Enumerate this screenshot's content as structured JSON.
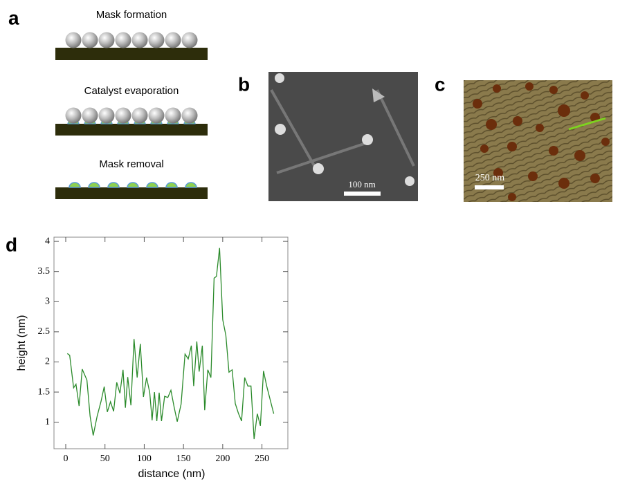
{
  "figure": {
    "panels": {
      "a": {
        "label": "a",
        "steps": [
          "Mask formation",
          "Catalyst evaporation",
          "Mask removal"
        ]
      },
      "b": {
        "label": "b",
        "scale_bar": "100 nm"
      },
      "c": {
        "label": "c",
        "scale_bar": "250 nm"
      },
      "d": {
        "label": "d"
      }
    }
  },
  "chart_data": {
    "type": "line",
    "x_label": "distance (nm)",
    "y_label": "height (nm)",
    "x": [
      2,
      5,
      10,
      13,
      17,
      21,
      27,
      31,
      35,
      40,
      45,
      49,
      53,
      57,
      61,
      65,
      69,
      73,
      76,
      79,
      83,
      87,
      91,
      95,
      99,
      103,
      107,
      110,
      113,
      116,
      119,
      122,
      126,
      130,
      134,
      138,
      142,
      147,
      152,
      156,
      160,
      163,
      167,
      170,
      174,
      177,
      181,
      185,
      189,
      192,
      196,
      200,
      204,
      208,
      212,
      216,
      220,
      224,
      228,
      232,
      236,
      240,
      244,
      248,
      252,
      256,
      265
    ],
    "values": [
      2.14,
      2.11,
      1.57,
      1.63,
      1.27,
      1.88,
      1.7,
      1.1,
      0.78,
      1.1,
      1.35,
      1.59,
      1.17,
      1.34,
      1.18,
      1.66,
      1.48,
      1.87,
      1.24,
      1.75,
      1.28,
      2.38,
      1.74,
      2.3,
      1.42,
      1.74,
      1.49,
      1.03,
      1.5,
      1.02,
      1.49,
      1.02,
      1.43,
      1.41,
      1.53,
      1.26,
      1.01,
      1.3,
      2.13,
      2.05,
      2.27,
      1.6,
      2.34,
      1.84,
      2.27,
      1.2,
      1.87,
      1.74,
      3.39,
      3.42,
      3.89,
      2.7,
      2.44,
      1.83,
      1.87,
      1.31,
      1.15,
      1.02,
      1.74,
      1.6,
      1.6,
      0.72,
      1.14,
      0.94,
      1.85,
      1.6,
      1.14
    ],
    "color": "#2a8a2a",
    "xlim": [
      -15,
      283
    ],
    "ylim": [
      0.56,
      4.07
    ],
    "xticks": [
      0,
      50,
      100,
      150,
      200,
      250
    ],
    "yticks": [
      1,
      1.5,
      2,
      2.5,
      3,
      3.5,
      4
    ]
  }
}
